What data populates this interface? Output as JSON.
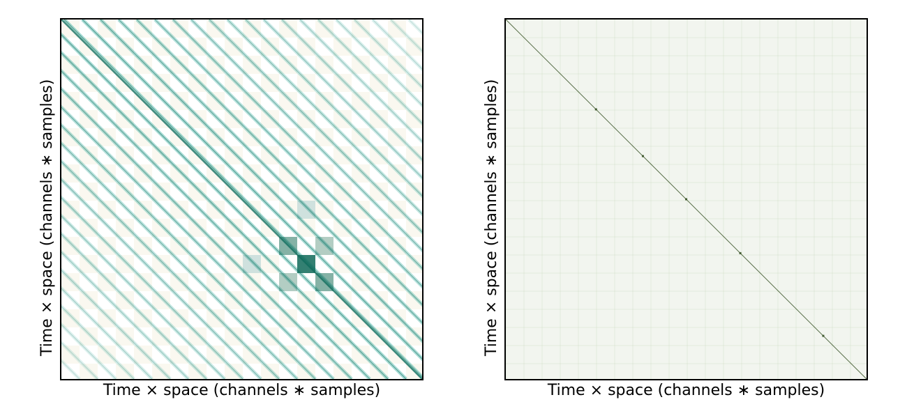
{
  "chart_data": [
    {
      "type": "heatmap",
      "title": "",
      "xlabel": "Time × space (channels ∗ samples)",
      "ylabel": "Time × space (channels ∗ samples)",
      "colormap": "white-to-teal",
      "colors": {
        "low": "#f6f3e4",
        "mid": "#ffffff",
        "high": "#0f6b5c"
      },
      "ticks": "none",
      "pattern": "banded diagonal (strong periodic off-diagonal stripes), strongest block near lower-right of center"
    },
    {
      "type": "heatmap",
      "title": "",
      "xlabel": "Time × space (channels ∗ samples)",
      "ylabel": "Time × space (channels ∗ samples)",
      "colormap": "white-to-green",
      "colors": {
        "low": "#eef2e9",
        "mid": "#f2f5ef",
        "high": "#2f4a1c"
      },
      "ticks": "none",
      "pattern": "near-uniform background with a single thin main diagonal and faint grid speckle"
    }
  ]
}
